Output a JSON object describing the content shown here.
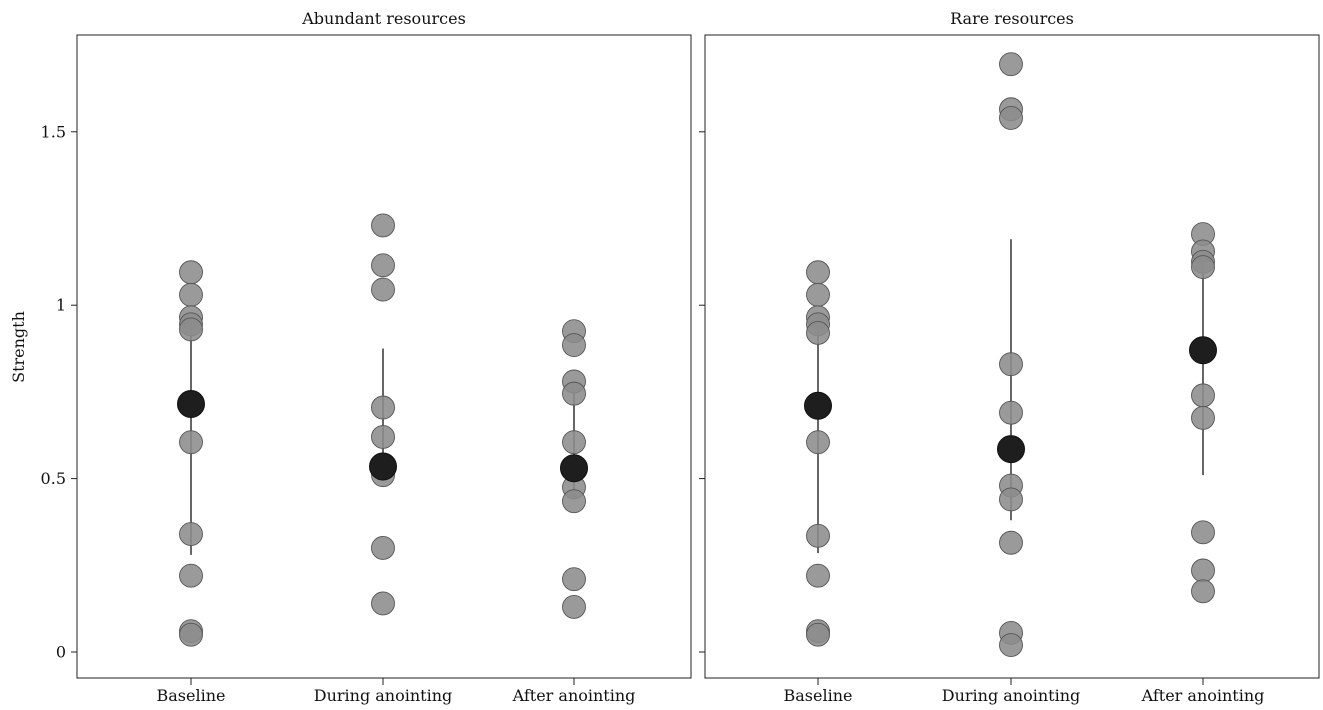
{
  "chart_data": {
    "type": "scatter",
    "ylabel": "Strength",
    "ylim": [
      -0.07,
      1.78
    ],
    "yticks": [
      {
        "value": 0,
        "label": "0"
      },
      {
        "value": 0.5,
        "label": "0.5"
      },
      {
        "value": 1,
        "label": "1"
      },
      {
        "value": 1.5,
        "label": "1.5"
      }
    ],
    "categories": [
      "Baseline",
      "During anointing",
      "After anointing"
    ],
    "colors": {
      "individual": "#8c8c8c",
      "mean": "#1e1e1e",
      "line": "#000000"
    },
    "panels": [
      {
        "title": "Abundant resources",
        "groups": [
          {
            "category": "Baseline",
            "points": [
              1.095,
              1.03,
              0.965,
              0.945,
              0.93,
              0.605,
              0.34,
              0.22,
              0.06,
              0.05
            ],
            "mean": 0.715,
            "range": [
              0.28,
              0.955
            ]
          },
          {
            "category": "During anointing",
            "points": [
              1.23,
              1.115,
              1.045,
              0.705,
              0.62,
              0.51,
              0.3,
              0.14
            ],
            "mean": 0.535,
            "range": [
              0.52,
              0.875
            ]
          },
          {
            "category": "After anointing",
            "points": [
              0.925,
              0.885,
              0.78,
              0.745,
              0.605,
              0.475,
              0.435,
              0.21,
              0.13
            ],
            "mean": 0.53,
            "range": [
              0.44,
              0.76
            ]
          }
        ]
      },
      {
        "title": "Rare resources",
        "groups": [
          {
            "category": "Baseline",
            "points": [
              1.095,
              1.03,
              0.965,
              0.945,
              0.92,
              0.605,
              0.335,
              0.22,
              0.06,
              0.05
            ],
            "mean": 0.71,
            "range": [
              0.285,
              0.95
            ]
          },
          {
            "category": "During anointing",
            "points": [
              1.695,
              1.565,
              1.54,
              0.83,
              0.69,
              0.48,
              0.44,
              0.315,
              0.055,
              0.02
            ],
            "mean": 0.585,
            "range": [
              0.38,
              1.19
            ]
          },
          {
            "category": "After anointing",
            "points": [
              1.205,
              1.155,
              1.125,
              1.11,
              0.74,
              0.675,
              0.345,
              0.235,
              0.175
            ],
            "mean": 0.87,
            "range": [
              0.51,
              1.13
            ]
          }
        ]
      }
    ]
  }
}
